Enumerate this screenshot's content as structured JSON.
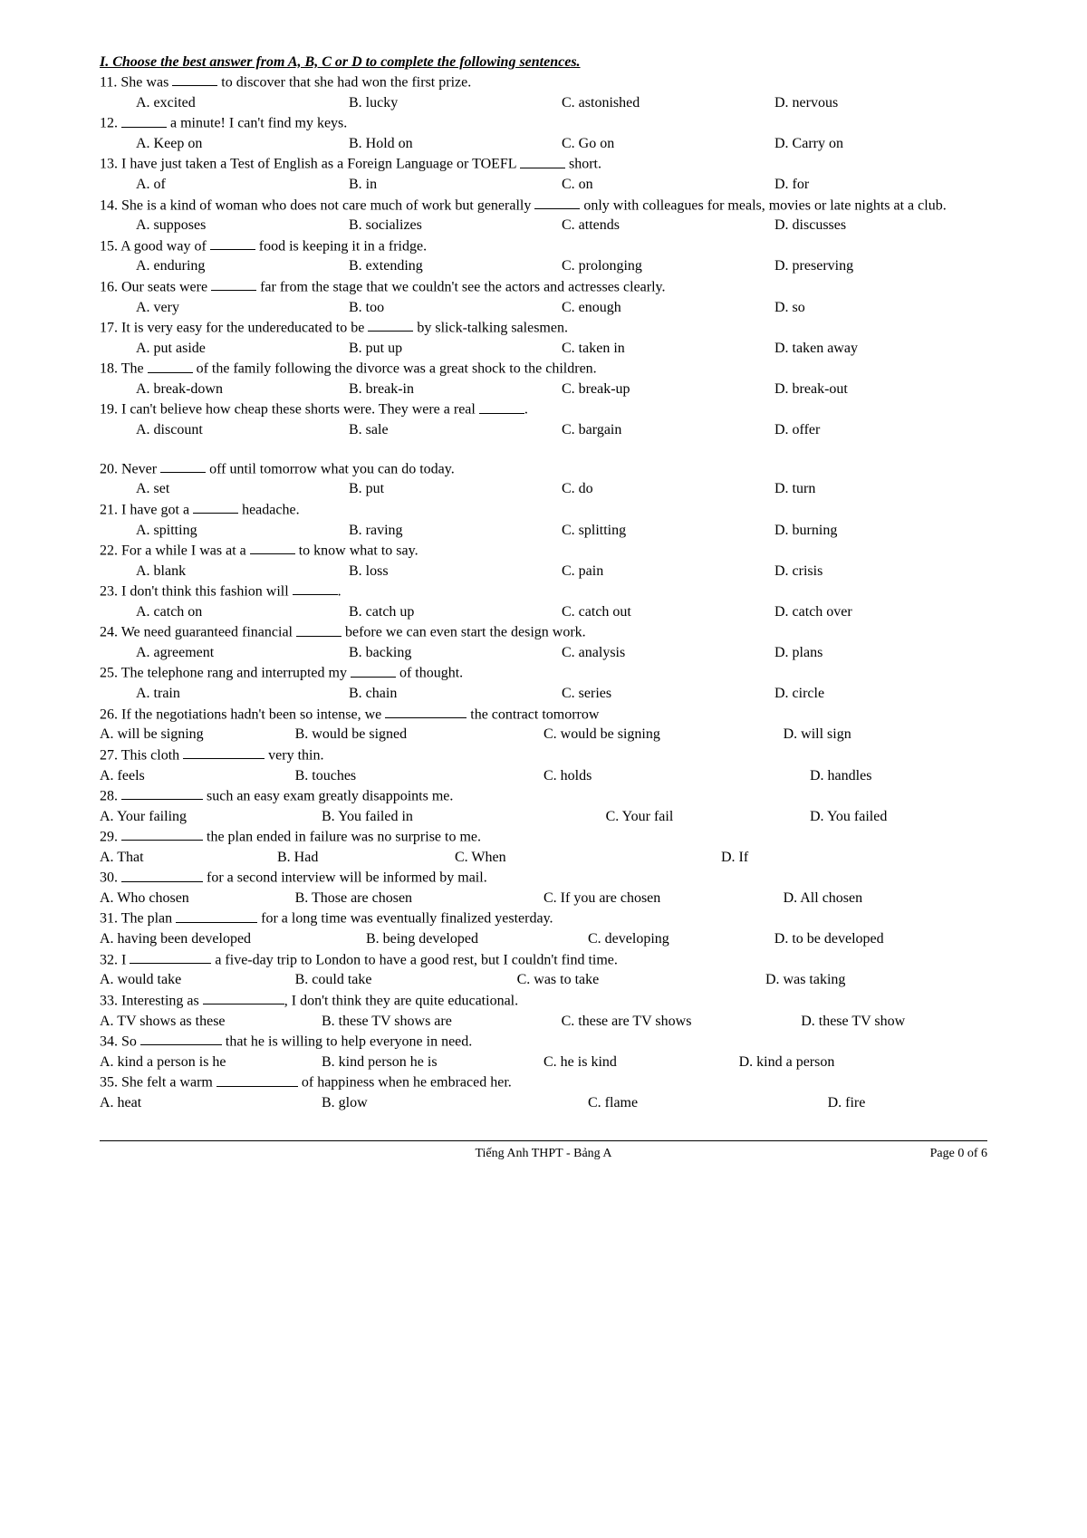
{
  "sectionHeader": "I. Choose the best answer from A, B, C or D to complete the following sentences.",
  "footer": {
    "left": "",
    "center": "Tiếng Anh THPT - Bảng A",
    "right": "Page 0 of 6"
  },
  "questions": [
    {
      "num": "11",
      "text_parts": [
        "11. She was ",
        " to discover that she had won the first prize."
      ],
      "opts": [
        "A. excited",
        "B. lucky",
        "C. astonished",
        "D. nervous"
      ],
      "layout": "four-indent"
    },
    {
      "num": "12",
      "text_parts": [
        "12. ",
        " a minute! I can't find my keys."
      ],
      "opts": [
        "A. Keep on",
        "B. Hold on",
        "C. Go on",
        "D. Carry on"
      ],
      "layout": "four-indent"
    },
    {
      "num": "13",
      "text_parts": [
        "13. I have just taken a Test of English as a Foreign Language or TOEFL ",
        " short."
      ],
      "opts": [
        "A. of",
        "B. in",
        "C. on",
        "D. for"
      ],
      "layout": "four-indent"
    },
    {
      "num": "14",
      "text_parts": [
        "14. She is a kind of woman who does not care much of work but generally ",
        " only with colleagues for meals, movies or late nights at a club."
      ],
      "opts": [
        "A. supposes",
        "B. socializes",
        "C. attends",
        "D. discusses"
      ],
      "layout": "four-indent"
    },
    {
      "num": "15",
      "text_parts": [
        "15. A good way of ",
        " food is keeping it in a fridge."
      ],
      "opts": [
        "A. enduring",
        "B. extending",
        "C. prolonging",
        "D. preserving"
      ],
      "layout": "four-indent"
    },
    {
      "num": "16",
      "text_parts": [
        "16. Our seats were ",
        " far from the stage that we couldn't see the actors and actresses clearly."
      ],
      "opts": [
        "A. very",
        "B. too",
        "C. enough",
        "D. so"
      ],
      "layout": "four-indent"
    },
    {
      "num": "17",
      "text_parts": [
        "17. It is very easy for the undereducated to be ",
        " by slick-talking salesmen."
      ],
      "opts": [
        "A. put aside",
        "B. put up",
        "C. taken in",
        "D. taken away"
      ],
      "layout": "four-indent"
    },
    {
      "num": "18",
      "text_parts": [
        "18. The ",
        " of the family following the divorce was a great shock to the children."
      ],
      "opts": [
        "A. break-down",
        "B. break-in",
        "C. break-up",
        "D. break-out"
      ],
      "layout": "four-indent"
    },
    {
      "num": "19",
      "text_parts": [
        "19. I can't believe how cheap these shorts were. They were a real ",
        "."
      ],
      "opts": [
        "A. discount",
        "B. sale",
        "C. bargain",
        "D. offer"
      ],
      "layout": "four-indent",
      "afterSpace": true
    },
    {
      "num": "20",
      "text_parts": [
        "20. Never ",
        " off until tomorrow what you can do today."
      ],
      "opts": [
        "A. set",
        "B. put",
        "C. do",
        "D. turn"
      ],
      "layout": "four-indent"
    },
    {
      "num": "21",
      "text_parts": [
        "21. I have got a ",
        " headache."
      ],
      "opts": [
        "A. spitting",
        "B. raving",
        "C. splitting",
        "D. burning"
      ],
      "layout": "four-indent"
    },
    {
      "num": "22",
      "text_parts": [
        "22. For a while I was at a ",
        " to know what to say."
      ],
      "opts": [
        "A. blank",
        "B. loss",
        "C. pain",
        "D. crisis"
      ],
      "layout": "four-indent"
    },
    {
      "num": "23",
      "text_parts": [
        "23. I don't think this fashion will ",
        "."
      ],
      "opts": [
        "A. catch on",
        "B. catch up",
        "C. catch out",
        "D. catch over"
      ],
      "layout": "four-indent"
    },
    {
      "num": "24",
      "text_parts": [
        "24. We need guaranteed financial ",
        " before we can even start the design work."
      ],
      "opts": [
        "A. agreement",
        "B. backing",
        "C. analysis",
        "D. plans"
      ],
      "layout": "four-indent"
    },
    {
      "num": "25",
      "text_parts": [
        "25. The telephone rang and interrupted my ",
        " of thought."
      ],
      "opts": [
        "A. train",
        "B. chain",
        "C. series",
        "D. circle"
      ],
      "layout": "four-indent"
    },
    {
      "num": "26",
      "text_parts": [
        "26. If the negotiations hadn't been so intense, we ",
        " the contract tomorrow"
      ],
      "opts": [
        "A. will be signing",
        "B. would be signed",
        "C. would be signing",
        "D. will sign"
      ],
      "layout": "q26"
    },
    {
      "num": "27",
      "text_parts": [
        "27. This cloth ",
        " very thin."
      ],
      "opts": [
        "A. feels",
        "B. touches",
        "C. holds",
        "D. handles"
      ],
      "layout": "q27"
    },
    {
      "num": "28",
      "text_parts": [
        "28. ",
        " such an easy exam greatly disappoints me."
      ],
      "opts": [
        "A. Your failing",
        "B. You failed in",
        "C. Your fail",
        "D. You failed"
      ],
      "layout": "q28"
    },
    {
      "num": "29",
      "text_parts": [
        "29. ",
        " the plan ended in failure was no surprise to me."
      ],
      "opts": [
        "A. That",
        "B. Had",
        "C. When",
        "D. If"
      ],
      "layout": "q29"
    },
    {
      "num": "30",
      "text_parts": [
        "30. ",
        " for a second interview will be informed by mail."
      ],
      "opts": [
        "A. Who chosen",
        "B. Those are chosen",
        "C. If you are chosen",
        "D. All chosen"
      ],
      "layout": "q30"
    },
    {
      "num": "31",
      "text_parts": [
        "31. The plan ",
        " for a long time was eventually finalized yesterday."
      ],
      "opts": [
        "A. having been developed",
        "B. being developed",
        "C. developing",
        "D. to be developed"
      ],
      "layout": "q31"
    },
    {
      "num": "32",
      "text_parts": [
        "32. I ",
        " a five-day trip to London to have a good rest, but I couldn't find time."
      ],
      "opts": [
        "A. would take",
        "B. could take",
        "C. was to take",
        "D. was taking"
      ],
      "layout": "q32"
    },
    {
      "num": "33",
      "text_parts": [
        "33. Interesting as ",
        ", I don't think they are quite educational."
      ],
      "opts": [
        "A. TV shows as these",
        "B. these TV shows are",
        "C. these are TV shows",
        "D. these TV show"
      ],
      "layout": "q33"
    },
    {
      "num": "34",
      "text_parts": [
        "34. So ",
        " that he is willing to help everyone in need."
      ],
      "opts": [
        "A. kind a person is he",
        "B. kind person he is",
        "C. he is kind",
        "D. kind a person"
      ],
      "layout": "q34"
    },
    {
      "num": "35",
      "text_parts": [
        "35. She felt a warm ",
        " of happiness when he embraced her."
      ],
      "opts": [
        "A. heat",
        "B. glow",
        "C. flame",
        "D. fire"
      ],
      "layout": "q35"
    }
  ]
}
